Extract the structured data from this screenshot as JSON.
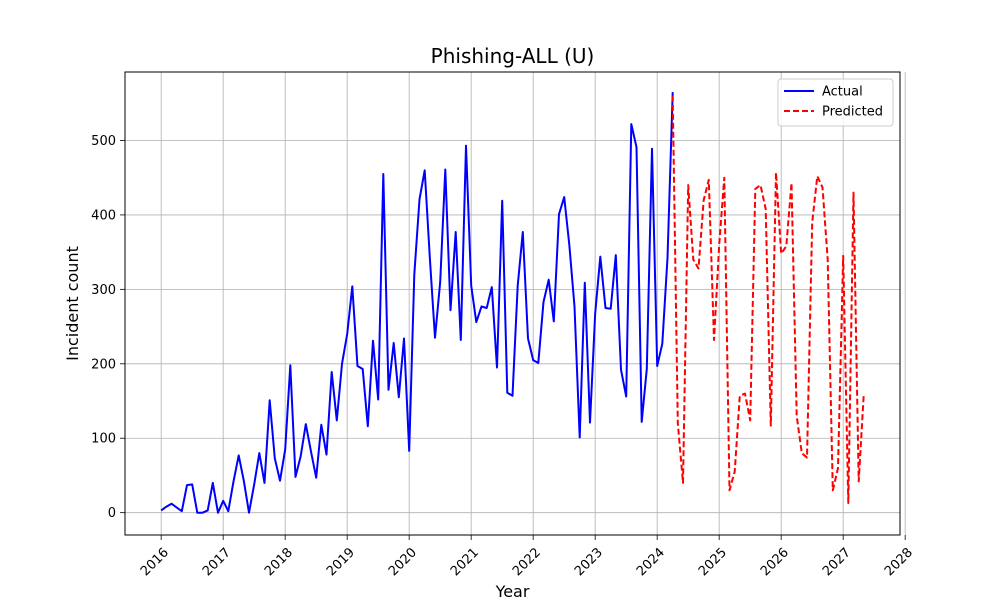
{
  "chart_data": {
    "type": "line",
    "title": "Phishing-ALL (U)",
    "xlabel": "Year",
    "ylabel": "Incident count",
    "xlim": [
      "2015-06-01",
      "2028-00-01"
    ],
    "ylim": [
      -30,
      592
    ],
    "grid": true,
    "legend_position": "top-right",
    "x_ticks": [
      "2016",
      "2017",
      "2018",
      "2019",
      "2020",
      "2021",
      "2022",
      "2023",
      "2024",
      "2025",
      "2026",
      "2027",
      "2028"
    ],
    "y_ticks": [
      0,
      100,
      200,
      300,
      400,
      500
    ],
    "series": [
      {
        "name": "Actual",
        "color": "#0000ff",
        "style": "solid",
        "points": [
          [
            "2016-01",
            3
          ],
          [
            "2016-02",
            8
          ],
          [
            "2016-03",
            12
          ],
          [
            "2016-04",
            7
          ],
          [
            "2016-05",
            2
          ],
          [
            "2016-06",
            37
          ],
          [
            "2016-07",
            38
          ],
          [
            "2016-08",
            0
          ],
          [
            "2016-09",
            0
          ],
          [
            "2016-10",
            3
          ],
          [
            "2016-11",
            40
          ],
          [
            "2016-12",
            0
          ],
          [
            "2017-01",
            16
          ],
          [
            "2017-02",
            2
          ],
          [
            "2017-03",
            42
          ],
          [
            "2017-04",
            77
          ],
          [
            "2017-05",
            43
          ],
          [
            "2017-06",
            0
          ],
          [
            "2017-07",
            38
          ],
          [
            "2017-08",
            80
          ],
          [
            "2017-09",
            40
          ],
          [
            "2017-10",
            151
          ],
          [
            "2017-11",
            73
          ],
          [
            "2017-12",
            43
          ],
          [
            "2018-01",
            85
          ],
          [
            "2018-02",
            198
          ],
          [
            "2018-03",
            48
          ],
          [
            "2018-04",
            76
          ],
          [
            "2018-05",
            119
          ],
          [
            "2018-06",
            82
          ],
          [
            "2018-07",
            47
          ],
          [
            "2018-08",
            118
          ],
          [
            "2018-09",
            78
          ],
          [
            "2018-10",
            189
          ],
          [
            "2018-11",
            124
          ],
          [
            "2018-12",
            200
          ],
          [
            "2019-01",
            240
          ],
          [
            "2019-02",
            304
          ],
          [
            "2019-03",
            197
          ],
          [
            "2019-04",
            193
          ],
          [
            "2019-05",
            116
          ],
          [
            "2019-06",
            231
          ],
          [
            "2019-07",
            152
          ],
          [
            "2019-08",
            455
          ],
          [
            "2019-09",
            165
          ],
          [
            "2019-10",
            228
          ],
          [
            "2019-11",
            155
          ],
          [
            "2019-12",
            234
          ],
          [
            "2020-01",
            83
          ],
          [
            "2020-02",
            320
          ],
          [
            "2020-03",
            421
          ],
          [
            "2020-04",
            460
          ],
          [
            "2020-05",
            343
          ],
          [
            "2020-06",
            235
          ],
          [
            "2020-07",
            310
          ],
          [
            "2020-08",
            461
          ],
          [
            "2020-09",
            272
          ],
          [
            "2020-10",
            377
          ],
          [
            "2020-11",
            232
          ],
          [
            "2020-12",
            493
          ],
          [
            "2021-01",
            305
          ],
          [
            "2021-02",
            256
          ],
          [
            "2021-03",
            277
          ],
          [
            "2021-04",
            275
          ],
          [
            "2021-05",
            303
          ],
          [
            "2021-06",
            195
          ],
          [
            "2021-07",
            419
          ],
          [
            "2021-08",
            161
          ],
          [
            "2021-09",
            157
          ],
          [
            "2021-10",
            305
          ],
          [
            "2021-11",
            377
          ],
          [
            "2021-12",
            234
          ],
          [
            "2022-01",
            205
          ],
          [
            "2022-02",
            201
          ],
          [
            "2022-03",
            283
          ],
          [
            "2022-04",
            313
          ],
          [
            "2022-05",
            257
          ],
          [
            "2022-06",
            401
          ],
          [
            "2022-07",
            424
          ],
          [
            "2022-08",
            360
          ],
          [
            "2022-09",
            277
          ],
          [
            "2022-10",
            101
          ],
          [
            "2022-11",
            309
          ],
          [
            "2022-12",
            121
          ],
          [
            "2023-01",
            268
          ],
          [
            "2023-02",
            344
          ],
          [
            "2023-03",
            275
          ],
          [
            "2023-04",
            274
          ],
          [
            "2023-05",
            346
          ],
          [
            "2023-06",
            192
          ],
          [
            "2023-07",
            156
          ],
          [
            "2023-08",
            522
          ],
          [
            "2023-09",
            491
          ],
          [
            "2023-10",
            122
          ],
          [
            "2023-11",
            193
          ],
          [
            "2023-12",
            489
          ],
          [
            "2024-01",
            197
          ],
          [
            "2024-02",
            227
          ],
          [
            "2024-03",
            342
          ],
          [
            "2024-04",
            565
          ]
        ]
      },
      {
        "name": "Predicted",
        "color": "#ff0000",
        "style": "dashed",
        "points": [
          [
            "2024-04",
            560
          ],
          [
            "2024-05",
            120
          ],
          [
            "2024-06",
            40
          ],
          [
            "2024-07",
            440
          ],
          [
            "2024-08",
            340
          ],
          [
            "2024-09",
            328
          ],
          [
            "2024-10",
            420
          ],
          [
            "2024-11",
            447
          ],
          [
            "2024-12",
            232
          ],
          [
            "2025-01",
            360
          ],
          [
            "2025-02",
            450
          ],
          [
            "2025-03",
            30
          ],
          [
            "2025-04",
            55
          ],
          [
            "2025-05",
            157
          ],
          [
            "2025-06",
            160
          ],
          [
            "2025-07",
            124
          ],
          [
            "2025-08",
            435
          ],
          [
            "2025-09",
            440
          ],
          [
            "2025-10",
            408
          ],
          [
            "2025-11",
            117
          ],
          [
            "2025-12",
            457
          ],
          [
            "2026-01",
            348
          ],
          [
            "2026-02",
            358
          ],
          [
            "2026-03",
            443
          ],
          [
            "2026-04",
            130
          ],
          [
            "2026-05",
            80
          ],
          [
            "2026-06",
            74
          ],
          [
            "2026-07",
            390
          ],
          [
            "2026-08",
            452
          ],
          [
            "2026-09",
            437
          ],
          [
            "2026-10",
            340
          ],
          [
            "2026-11",
            30
          ],
          [
            "2026-12",
            60
          ],
          [
            "2027-01",
            345
          ],
          [
            "2027-02",
            13
          ],
          [
            "2027-03",
            430
          ],
          [
            "2027-04",
            42
          ],
          [
            "2027-05",
            160
          ]
        ]
      }
    ]
  }
}
